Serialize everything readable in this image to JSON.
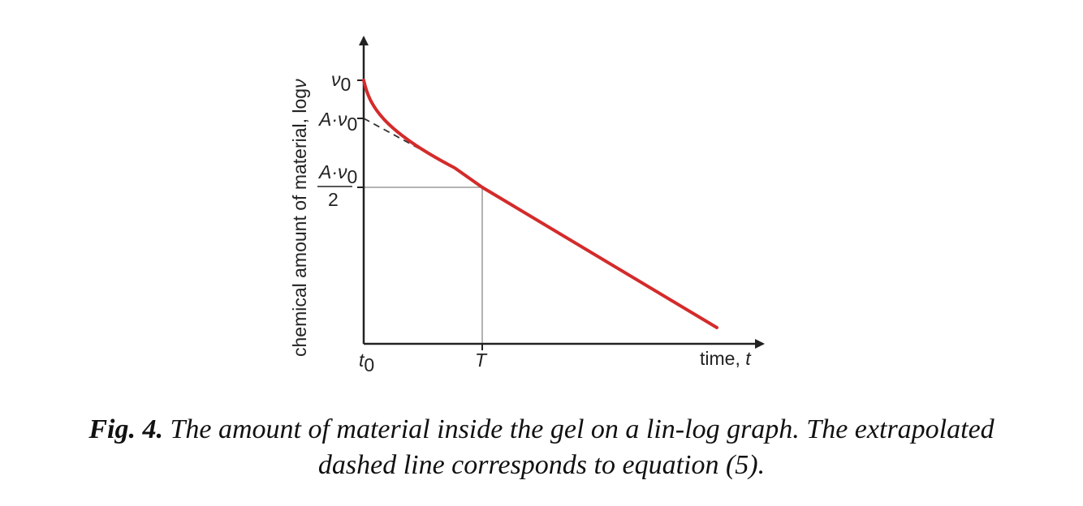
{
  "figure": {
    "y_axis_label": "chemical amount of material, log",
    "y_axis_symbol": "ν",
    "x_axis_label": "time, ",
    "x_axis_symbol": "t",
    "y_ticks": {
      "nu0_symbol": "ν",
      "nu0_sub": "0",
      "a_nu0_prefix": "A·",
      "a_nu0_symbol": "ν",
      "a_nu0_sub": "0",
      "half_numerator_prefix": "A·",
      "half_numerator_symbol": "ν",
      "half_numerator_sub": "0",
      "half_denominator": "2"
    },
    "x_ticks": {
      "t0_symbol": "t",
      "t0_sub": "0",
      "T_symbol": "T"
    },
    "colors": {
      "curve": "#d42b2b",
      "axis": "#222222",
      "guide": "#888888",
      "dashed": "#333333"
    }
  },
  "caption": {
    "label": "Fig. 4.",
    "line1": "The amount of material inside the gel on a lin-log graph. The extrapolated",
    "line2": "dashed line corresponds to equation (5)."
  }
}
